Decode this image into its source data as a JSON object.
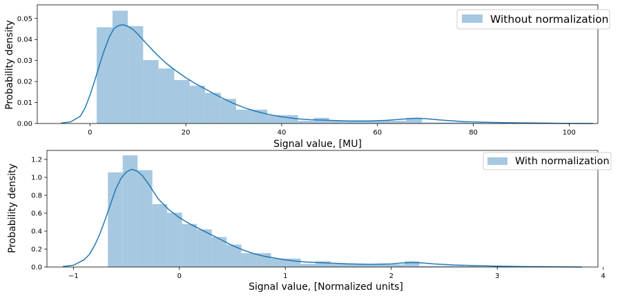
{
  "chart_data": [
    {
      "type": "histogram",
      "xlabel": "Signal value, [MU]",
      "ylabel": "Probability density",
      "xlim": [
        -11,
        106
      ],
      "ylim": [
        0,
        0.0565
      ],
      "xticks": [
        0,
        20,
        40,
        60,
        80,
        100
      ],
      "yticks": [
        0.0,
        0.01,
        0.02,
        0.03,
        0.04,
        0.05
      ],
      "ytick_labels": [
        "0.00",
        "0.01",
        "0.02",
        "0.03",
        "0.04",
        "0.05"
      ],
      "grid": false,
      "legend": {
        "position": "top-right",
        "entries": [
          "Without normalization"
        ]
      },
      "bar_color": "#a6c8e0",
      "kde_color": "#1f77b4",
      "bins": [
        {
          "x0": 1.4,
          "x1": 4.7,
          "y": 0.0458
        },
        {
          "x0": 4.7,
          "x1": 7.9,
          "y": 0.0537
        },
        {
          "x0": 7.9,
          "x1": 11.1,
          "y": 0.0464
        },
        {
          "x0": 11.1,
          "x1": 14.3,
          "y": 0.0302
        },
        {
          "x0": 14.3,
          "x1": 17.6,
          "y": 0.0262
        },
        {
          "x0": 17.6,
          "x1": 20.8,
          "y": 0.0207
        },
        {
          "x0": 20.8,
          "x1": 24.0,
          "y": 0.018
        },
        {
          "x0": 24.0,
          "x1": 27.3,
          "y": 0.0146
        },
        {
          "x0": 27.3,
          "x1": 30.5,
          "y": 0.0117
        },
        {
          "x0": 30.5,
          "x1": 33.7,
          "y": 0.0066
        },
        {
          "x0": 33.7,
          "x1": 37.0,
          "y": 0.0066
        },
        {
          "x0": 37.0,
          "x1": 40.2,
          "y": 0.004
        },
        {
          "x0": 40.2,
          "x1": 43.4,
          "y": 0.004
        },
        {
          "x0": 43.4,
          "x1": 46.7,
          "y": 0.0013
        },
        {
          "x0": 46.7,
          "x1": 49.9,
          "y": 0.0027
        },
        {
          "x0": 49.9,
          "x1": 53.1,
          "y": 0.0014
        },
        {
          "x0": 53.1,
          "x1": 56.3,
          "y": 0.0014
        },
        {
          "x0": 56.3,
          "x1": 59.6,
          "y": 0.0014
        },
        {
          "x0": 59.6,
          "x1": 62.8,
          "y": 0.0014
        },
        {
          "x0": 62.8,
          "x1": 66.0,
          "y": 0.0013
        },
        {
          "x0": 66.0,
          "x1": 69.3,
          "y": 0.0027
        },
        {
          "x0": 69.3,
          "x1": 72.5,
          "y": 0.0005
        },
        {
          "x0": 72.5,
          "x1": 75.7,
          "y": 0.0005
        },
        {
          "x0": 75.7,
          "x1": 79.0,
          "y": 0.0005
        },
        {
          "x0": 79.0,
          "x1": 82.2,
          "y": 0.0003
        },
        {
          "x0": 82.2,
          "x1": 85.4,
          "y": 0.0002
        },
        {
          "x0": 85.4,
          "x1": 88.6,
          "y": 0.0002
        },
        {
          "x0": 88.6,
          "x1": 91.9,
          "y": 0.0002
        },
        {
          "x0": 91.9,
          "x1": 95.1,
          "y": 0.0001
        },
        {
          "x0": 95.1,
          "x1": 98.3,
          "y": 0.0001
        },
        {
          "x0": 98.3,
          "x1": 101.6,
          "y": 0.0001
        }
      ],
      "kde": {
        "x": [
          -6,
          -4,
          -2,
          -1,
          0,
          1,
          2,
          3,
          4,
          5,
          6,
          7,
          8,
          9,
          10,
          12,
          14,
          16,
          18,
          20,
          22,
          24,
          26,
          28,
          30,
          32,
          34,
          36,
          38,
          40,
          43,
          46,
          50,
          54,
          58,
          62,
          66,
          68,
          70,
          74,
          78,
          82,
          86,
          90,
          94,
          98,
          101,
          105
        ],
        "y": [
          0.0002,
          0.0008,
          0.0035,
          0.0075,
          0.0135,
          0.0205,
          0.028,
          0.035,
          0.041,
          0.0452,
          0.0467,
          0.047,
          0.0462,
          0.0447,
          0.0425,
          0.0375,
          0.0327,
          0.0285,
          0.025,
          0.0218,
          0.019,
          0.0165,
          0.014,
          0.0117,
          0.0095,
          0.0077,
          0.0062,
          0.005,
          0.004,
          0.0032,
          0.0023,
          0.0018,
          0.0015,
          0.0012,
          0.0012,
          0.0015,
          0.0022,
          0.0025,
          0.0023,
          0.0015,
          0.0009,
          0.0006,
          0.0004,
          0.0003,
          0.0002,
          0.0001,
          5e-05,
          0.0
        ]
      }
    },
    {
      "type": "histogram",
      "xlabel": "Signal value, [Normalized units]",
      "ylabel": "Probability density",
      "xlim": [
        -1.25,
        3.95
      ],
      "ylim": [
        0,
        1.3
      ],
      "xticks": [
        -1,
        0,
        1,
        2,
        3,
        4
      ],
      "xtick_labels": [
        "−1",
        "0",
        "1",
        "2",
        "3",
        "4"
      ],
      "yticks": [
        0.0,
        0.2,
        0.4,
        0.6,
        0.8,
        1.0,
        1.2
      ],
      "ytick_labels": [
        "0.0",
        "0.2",
        "0.4",
        "0.6",
        "0.8",
        "1.0",
        "1.2"
      ],
      "grid": false,
      "legend": {
        "position": "top-right",
        "entries": [
          "With normalization"
        ]
      },
      "bar_color": "#a6c8e0",
      "kde_color": "#1f77b4",
      "bins": [
        {
          "x0": -0.675,
          "x1": -0.535,
          "y": 1.055
        },
        {
          "x0": -0.535,
          "x1": -0.395,
          "y": 1.245
        },
        {
          "x0": -0.395,
          "x1": -0.255,
          "y": 1.08
        },
        {
          "x0": -0.255,
          "x1": -0.115,
          "y": 0.7
        },
        {
          "x0": -0.115,
          "x1": 0.025,
          "y": 0.605
        },
        {
          "x0": 0.025,
          "x1": 0.165,
          "y": 0.48
        },
        {
          "x0": 0.165,
          "x1": 0.305,
          "y": 0.42
        },
        {
          "x0": 0.305,
          "x1": 0.445,
          "y": 0.335
        },
        {
          "x0": 0.445,
          "x1": 0.585,
          "y": 0.25
        },
        {
          "x0": 0.585,
          "x1": 0.725,
          "y": 0.155
        },
        {
          "x0": 0.725,
          "x1": 0.865,
          "y": 0.155
        },
        {
          "x0": 0.865,
          "x1": 1.005,
          "y": 0.095
        },
        {
          "x0": 1.005,
          "x1": 1.145,
          "y": 0.095
        },
        {
          "x0": 1.145,
          "x1": 1.285,
          "y": 0.035
        },
        {
          "x0": 1.285,
          "x1": 1.425,
          "y": 0.065
        },
        {
          "x0": 1.425,
          "x1": 1.565,
          "y": 0.035
        },
        {
          "x0": 1.565,
          "x1": 1.705,
          "y": 0.035
        },
        {
          "x0": 1.705,
          "x1": 1.845,
          "y": 0.035
        },
        {
          "x0": 1.845,
          "x1": 1.985,
          "y": 0.035
        },
        {
          "x0": 1.985,
          "x1": 2.125,
          "y": 0.03
        },
        {
          "x0": 2.125,
          "x1": 2.265,
          "y": 0.065
        },
        {
          "x0": 2.265,
          "x1": 2.405,
          "y": 0.012
        },
        {
          "x0": 2.405,
          "x1": 2.545,
          "y": 0.012
        },
        {
          "x0": 2.545,
          "x1": 2.685,
          "y": 0.012
        },
        {
          "x0": 2.685,
          "x1": 2.825,
          "y": 0.008
        },
        {
          "x0": 2.825,
          "x1": 2.965,
          "y": 0.005
        },
        {
          "x0": 2.965,
          "x1": 3.105,
          "y": 0.005
        },
        {
          "x0": 3.105,
          "x1": 3.245,
          "y": 0.005
        },
        {
          "x0": 3.245,
          "x1": 3.385,
          "y": 0.003
        },
        {
          "x0": 3.385,
          "x1": 3.525,
          "y": 0.003
        },
        {
          "x0": 3.525,
          "x1": 3.665,
          "y": 0.003
        }
      ],
      "kde": {
        "x": [
          -1.1,
          -1.0,
          -0.9,
          -0.85,
          -0.8,
          -0.75,
          -0.7,
          -0.65,
          -0.6,
          -0.55,
          -0.5,
          -0.45,
          -0.4,
          -0.35,
          -0.3,
          -0.25,
          -0.2,
          -0.1,
          0.0,
          0.1,
          0.2,
          0.3,
          0.4,
          0.5,
          0.6,
          0.7,
          0.8,
          0.9,
          1.0,
          1.1,
          1.2,
          1.4,
          1.6,
          1.8,
          2.0,
          2.1,
          2.2,
          2.3,
          2.4,
          2.6,
          2.8,
          3.0,
          3.2,
          3.4,
          3.6,
          3.8
        ],
        "y": [
          0.005,
          0.02,
          0.08,
          0.14,
          0.24,
          0.37,
          0.53,
          0.7,
          0.87,
          0.99,
          1.06,
          1.09,
          1.07,
          1.02,
          0.94,
          0.85,
          0.76,
          0.64,
          0.55,
          0.48,
          0.42,
          0.36,
          0.3,
          0.24,
          0.19,
          0.15,
          0.12,
          0.1,
          0.08,
          0.065,
          0.055,
          0.045,
          0.035,
          0.03,
          0.035,
          0.045,
          0.05,
          0.045,
          0.035,
          0.022,
          0.015,
          0.01,
          0.006,
          0.004,
          0.002,
          0.0005
        ]
      }
    }
  ]
}
